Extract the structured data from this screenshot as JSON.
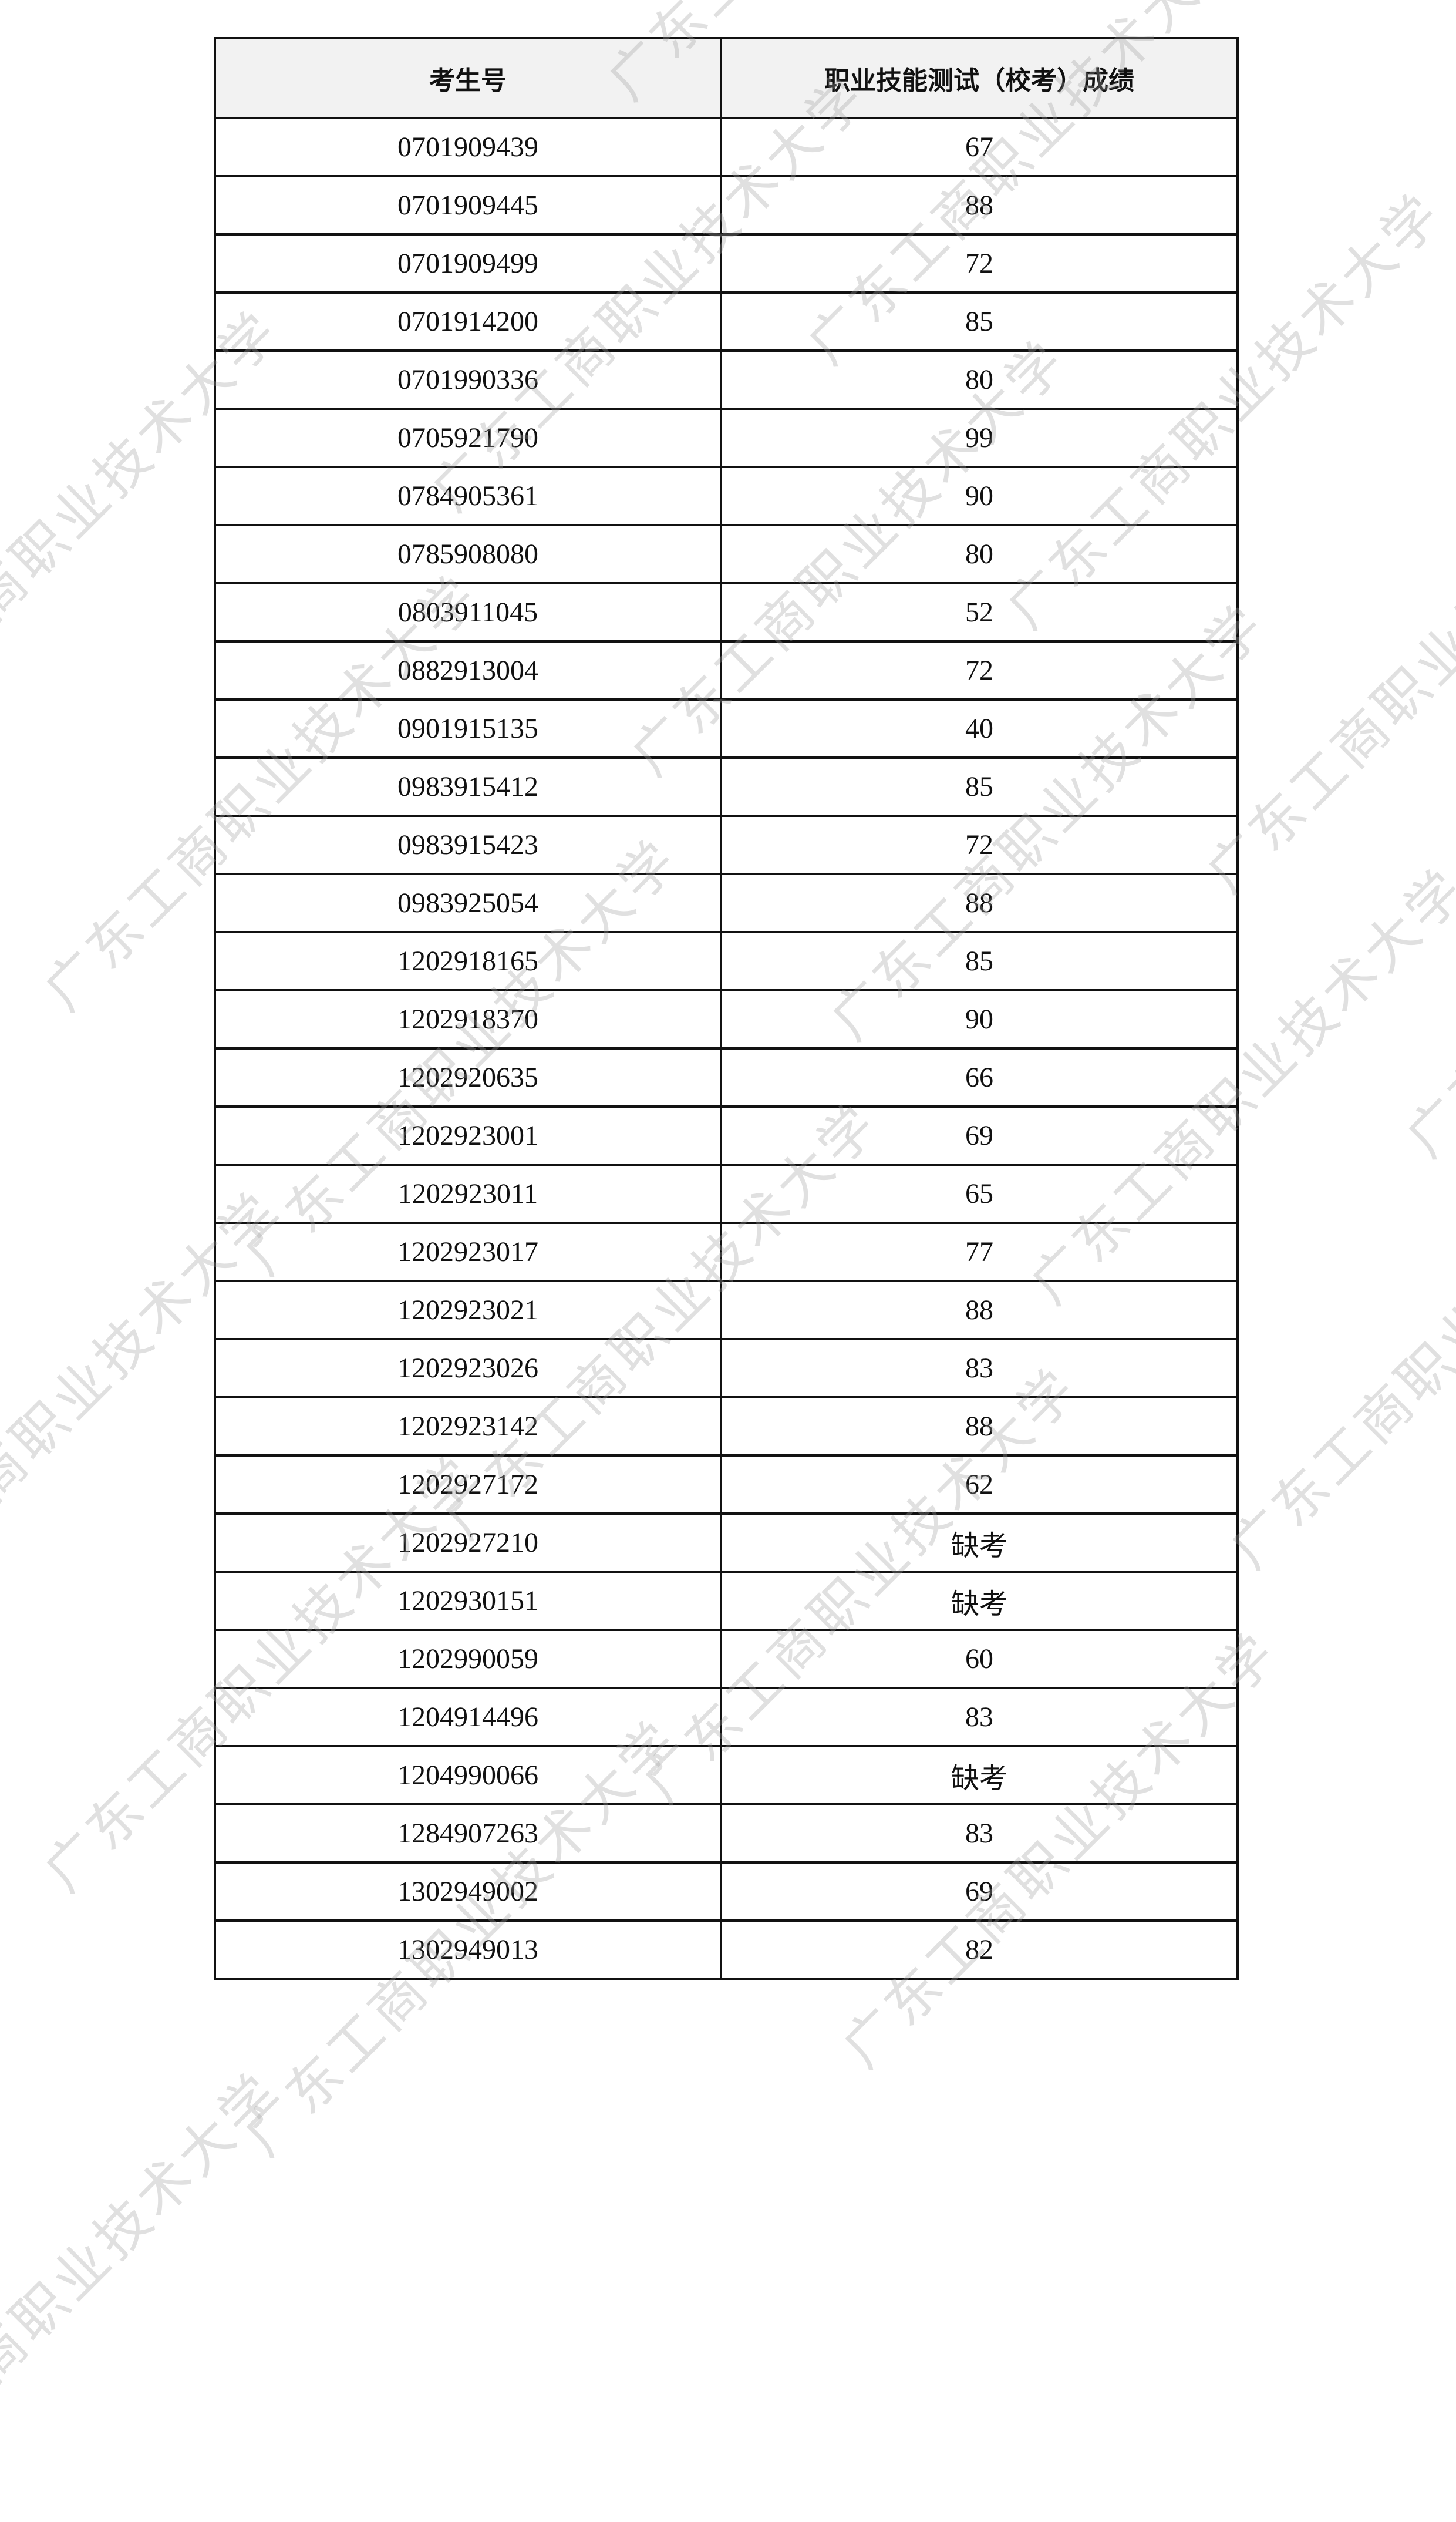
{
  "watermark": "广东工商职业技术大学",
  "table": {
    "headers": [
      "考生号",
      "职业技能测试（校考）成绩"
    ],
    "rows": [
      [
        "0701909439",
        "67"
      ],
      [
        "0701909445",
        "88"
      ],
      [
        "0701909499",
        "72"
      ],
      [
        "0701914200",
        "85"
      ],
      [
        "0701990336",
        "80"
      ],
      [
        "0705921790",
        "99"
      ],
      [
        "0784905361",
        "90"
      ],
      [
        "0785908080",
        "80"
      ],
      [
        "0803911045",
        "52"
      ],
      [
        "0882913004",
        "72"
      ],
      [
        "0901915135",
        "40"
      ],
      [
        "0983915412",
        "85"
      ],
      [
        "0983915423",
        "72"
      ],
      [
        "0983925054",
        "88"
      ],
      [
        "1202918165",
        "85"
      ],
      [
        "1202918370",
        "90"
      ],
      [
        "1202920635",
        "66"
      ],
      [
        "1202923001",
        "69"
      ],
      [
        "1202923011",
        "65"
      ],
      [
        "1202923017",
        "77"
      ],
      [
        "1202923021",
        "88"
      ],
      [
        "1202923026",
        "83"
      ],
      [
        "1202923142",
        "88"
      ],
      [
        "1202927172",
        "62"
      ],
      [
        "1202927210",
        "缺考"
      ],
      [
        "1202930151",
        "缺考"
      ],
      [
        "1202990059",
        "60"
      ],
      [
        "1204914496",
        "83"
      ],
      [
        "1204990066",
        "缺考"
      ],
      [
        "1284907263",
        "83"
      ],
      [
        "1302949002",
        "69"
      ],
      [
        "1302949013",
        "82"
      ]
    ]
  }
}
